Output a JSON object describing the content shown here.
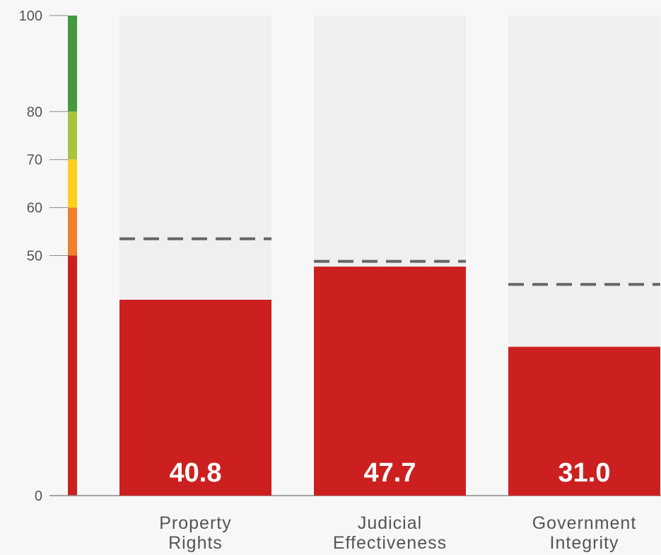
{
  "chart_data": {
    "type": "bar",
    "categories": [
      [
        "Property",
        "Rights"
      ],
      [
        "Judicial",
        "Effectiveness"
      ],
      [
        "Government",
        "Integrity"
      ]
    ],
    "values": [
      40.8,
      47.7,
      31.0
    ],
    "value_labels": [
      "40.8",
      "47.7",
      "31.0"
    ],
    "reference_values": [
      53.5,
      48.8,
      44.0
    ],
    "ylim": [
      0,
      100
    ],
    "yticks": [
      0,
      50,
      60,
      70,
      80,
      100
    ],
    "ytick_labels": [
      "0",
      "50",
      "60",
      "70",
      "80",
      "100"
    ],
    "color_scale": [
      {
        "from": 0,
        "to": 50,
        "color": "#cc2020"
      },
      {
        "from": 50,
        "to": 60,
        "color": "#ee7f2d"
      },
      {
        "from": 60,
        "to": 70,
        "color": "#fdd01b"
      },
      {
        "from": 70,
        "to": 80,
        "color": "#a9c43a"
      },
      {
        "from": 80,
        "to": 100,
        "color": "#43993b"
      }
    ],
    "bar_color": "#cc2020",
    "background_bar_color": "#f0eff0",
    "reference_line_color": "#666666",
    "axis_color": "#888888"
  }
}
